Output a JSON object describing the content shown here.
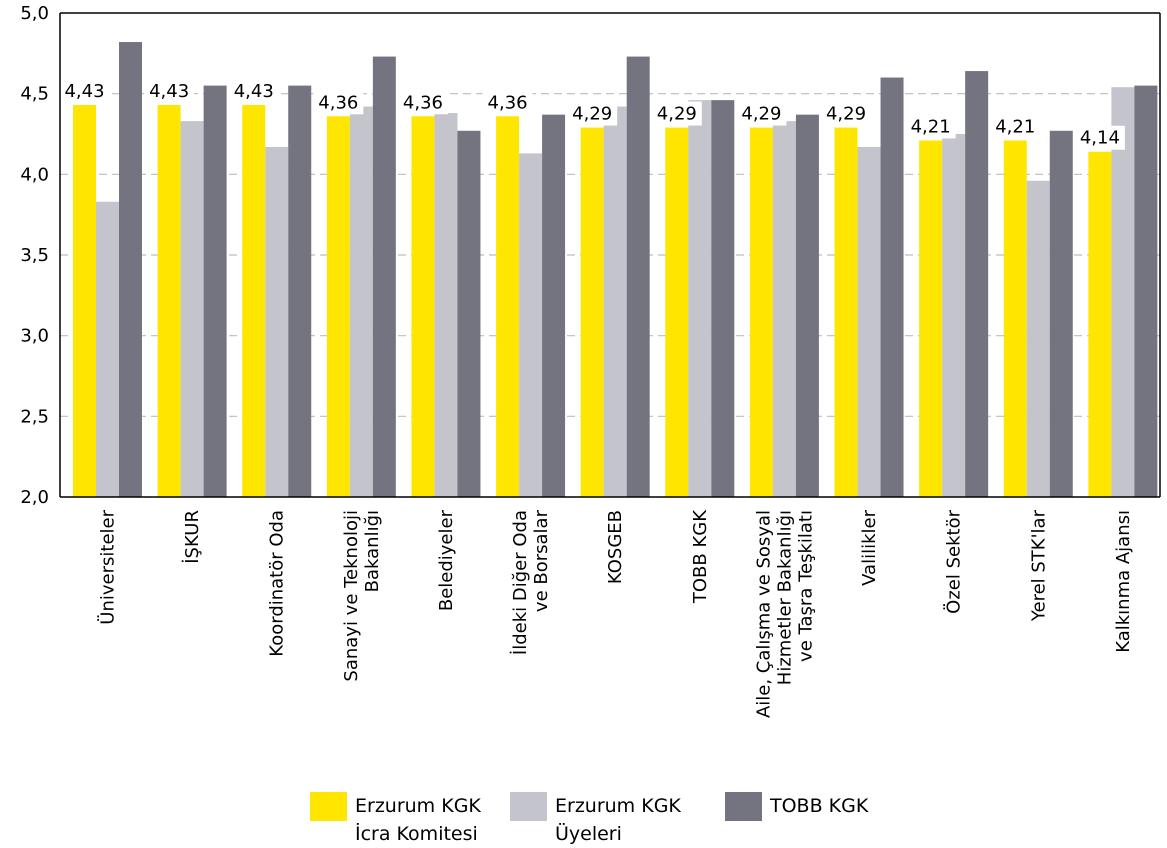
{
  "chart_data": {
    "type": "bar",
    "categories": [
      "Üniversiteler",
      "İŞKUR",
      "Koordinatör Oda",
      "Sanayi ve Teknoloji\nBakanlığı",
      "Belediyeler",
      "İldeki Diğer Oda\nve Borsalar",
      "KOSGEB",
      "TOBB KGK",
      "Aile, Çalışma ve Sosyal\nHizmetler Bakanlığı\nve Taşra Teşkilatı",
      "Valilikler",
      "Özel Sektör",
      "Yerel STK'lar",
      "Kalkınma Ajansı"
    ],
    "series": [
      {
        "name": "Erzurum KGK İcra Komitesi",
        "color": "#ffe600",
        "values": [
          4.43,
          4.43,
          4.43,
          4.36,
          4.36,
          4.36,
          4.29,
          4.29,
          4.29,
          4.29,
          4.21,
          4.21,
          4.14
        ]
      },
      {
        "name": "Erzurum KGK Üyeleri",
        "color": "#c4c4cd",
        "values": [
          3.83,
          4.33,
          4.17,
          4.42,
          4.38,
          4.13,
          4.42,
          4.46,
          4.33,
          4.17,
          4.25,
          3.96,
          4.54
        ]
      },
      {
        "name": "TOBB KGK",
        "color": "#747480",
        "values": [
          4.82,
          4.55,
          4.55,
          4.73,
          4.27,
          4.37,
          4.73,
          4.46,
          4.37,
          4.6,
          4.64,
          4.27,
          4.55
        ]
      }
    ],
    "data_labels": [
      "4,43",
      "4,43",
      "4,43",
      "4,36",
      "4,36",
      "4,36",
      "4,29",
      "4,29",
      "4,29",
      "4,29",
      "4,21",
      "4,21",
      "4,14"
    ],
    "yticks": [
      "2,0",
      "2,5",
      "3,0",
      "3,5",
      "4,0",
      "4,5",
      "5,0"
    ],
    "ylim": [
      2.0,
      5.0
    ],
    "grid": "horizontal dashed",
    "legend_position": "bottom",
    "title": "",
    "xlabel": "",
    "ylabel": ""
  },
  "legend": {
    "items": [
      {
        "label": "Erzurum KGK\nİcra Komitesi",
        "color": "#ffe600"
      },
      {
        "label": "Erzurum KGK\nÜyeleri",
        "color": "#c4c4cd"
      },
      {
        "label": "TOBB KGK",
        "color": "#747480"
      }
    ]
  }
}
